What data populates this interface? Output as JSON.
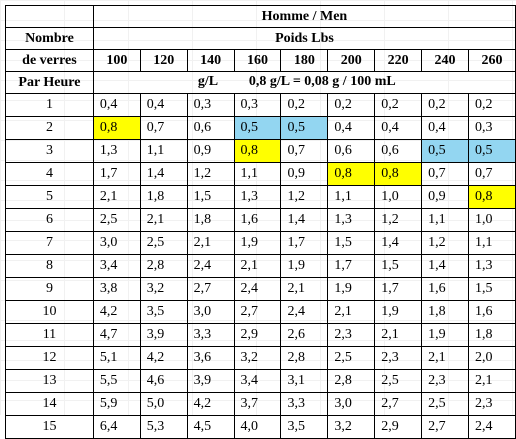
{
  "table": {
    "title": "Homme / Men",
    "subtitle": "Poids  Lbs",
    "row_label_lines": [
      "Nombre",
      "de verres",
      "Par Heure"
    ],
    "unit_a": "g/L",
    "unit_b": "0,8 g/L = 0,08 g / 100 mL",
    "weights": [
      "100",
      "120",
      "140",
      "160",
      "180",
      "200",
      "220",
      "240",
      "260"
    ],
    "rows": [
      {
        "n": "1",
        "v": [
          "0,4",
          "0,4",
          "0,3",
          "0,3",
          "0,2",
          "0,2",
          "0,2",
          "0,2",
          "0,2"
        ],
        "hl": [
          "",
          "",
          "",
          "",
          "",
          "",
          "",
          "",
          ""
        ]
      },
      {
        "n": "2",
        "v": [
          "0,8",
          "0,7",
          "0,6",
          "0,5",
          "0,5",
          "0,4",
          "0,4",
          "0,4",
          "0,3"
        ],
        "hl": [
          "yellow",
          "",
          "",
          "blue",
          "blue",
          "",
          "",
          "",
          ""
        ]
      },
      {
        "n": "3",
        "v": [
          "1,3",
          "1,1",
          "0,9",
          "0,8",
          "0,7",
          "0,6",
          "0,6",
          "0,5",
          "0,5"
        ],
        "hl": [
          "",
          "",
          "",
          "yellow",
          "",
          "",
          "",
          "blue",
          "blue"
        ]
      },
      {
        "n": "4",
        "v": [
          "1,7",
          "1,4",
          "1,2",
          "1,1",
          "0,9",
          "0,8",
          "0,8",
          "0,7",
          "0,7"
        ],
        "hl": [
          "",
          "",
          "",
          "",
          "",
          "yellow",
          "yellow",
          "",
          ""
        ]
      },
      {
        "n": "5",
        "v": [
          "2,1",
          "1,8",
          "1,5",
          "1,3",
          "1,2",
          "1,1",
          "1,0",
          "0,9",
          "0,8"
        ],
        "hl": [
          "",
          "",
          "",
          "",
          "",
          "",
          "",
          "",
          "yellow"
        ]
      },
      {
        "n": "6",
        "v": [
          "2,5",
          "2,1",
          "1,8",
          "1,6",
          "1,4",
          "1,3",
          "1,2",
          "1,1",
          "1,0"
        ],
        "hl": [
          "",
          "",
          "",
          "",
          "",
          "",
          "",
          "",
          ""
        ]
      },
      {
        "n": "7",
        "v": [
          "3,0",
          "2,5",
          "2,1",
          "1,9",
          "1,7",
          "1,5",
          "1,4",
          "1,2",
          "1,1"
        ],
        "hl": [
          "",
          "",
          "",
          "",
          "",
          "",
          "",
          "",
          ""
        ]
      },
      {
        "n": "8",
        "v": [
          "3,4",
          "2,8",
          "2,4",
          "2,1",
          "1,9",
          "1,7",
          "1,5",
          "1,4",
          "1,3"
        ],
        "hl": [
          "",
          "",
          "",
          "",
          "",
          "",
          "",
          "",
          ""
        ]
      },
      {
        "n": "9",
        "v": [
          "3,8",
          "3,2",
          "2,7",
          "2,4",
          "2,1",
          "1,9",
          "1,7",
          "1,6",
          "1,5"
        ],
        "hl": [
          "",
          "",
          "",
          "",
          "",
          "",
          "",
          "",
          ""
        ]
      },
      {
        "n": "10",
        "v": [
          "4,2",
          "3,5",
          "3,0",
          "2,7",
          "2,4",
          "2,1",
          "1,9",
          "1,8",
          "1,6"
        ],
        "hl": [
          "",
          "",
          "",
          "",
          "",
          "",
          "",
          "",
          ""
        ]
      },
      {
        "n": "11",
        "v": [
          "4,7",
          "3,9",
          "3,3",
          "2,9",
          "2,6",
          "2,3",
          "2,1",
          "1,9",
          "1,8"
        ],
        "hl": [
          "",
          "",
          "",
          "",
          "",
          "",
          "",
          "",
          ""
        ]
      },
      {
        "n": "12",
        "v": [
          "5,1",
          "4,2",
          "3,6",
          "3,2",
          "2,8",
          "2,5",
          "2,3",
          "2,1",
          "2,0"
        ],
        "hl": [
          "",
          "",
          "",
          "",
          "",
          "",
          "",
          "",
          ""
        ]
      },
      {
        "n": "13",
        "v": [
          "5,5",
          "4,6",
          "3,9",
          "3,4",
          "3,1",
          "2,8",
          "2,5",
          "2,3",
          "2,1"
        ],
        "hl": [
          "",
          "",
          "",
          "",
          "",
          "",
          "",
          "",
          ""
        ]
      },
      {
        "n": "14",
        "v": [
          "5,9",
          "5,0",
          "4,2",
          "3,7",
          "3,3",
          "3,0",
          "2,7",
          "2,5",
          "2,3"
        ],
        "hl": [
          "",
          "",
          "",
          "",
          "",
          "",
          "",
          "",
          ""
        ]
      },
      {
        "n": "15",
        "v": [
          "6,4",
          "5,3",
          "4,5",
          "4,0",
          "3,5",
          "3,2",
          "2,9",
          "2,7",
          "2,4"
        ],
        "hl": [
          "",
          "",
          "",
          "",
          "",
          "",
          "",
          "",
          ""
        ]
      }
    ]
  },
  "colors": {
    "highlight_yellow": "#ffff00",
    "highlight_blue": "#93d6f1",
    "grid": "#000000"
  }
}
